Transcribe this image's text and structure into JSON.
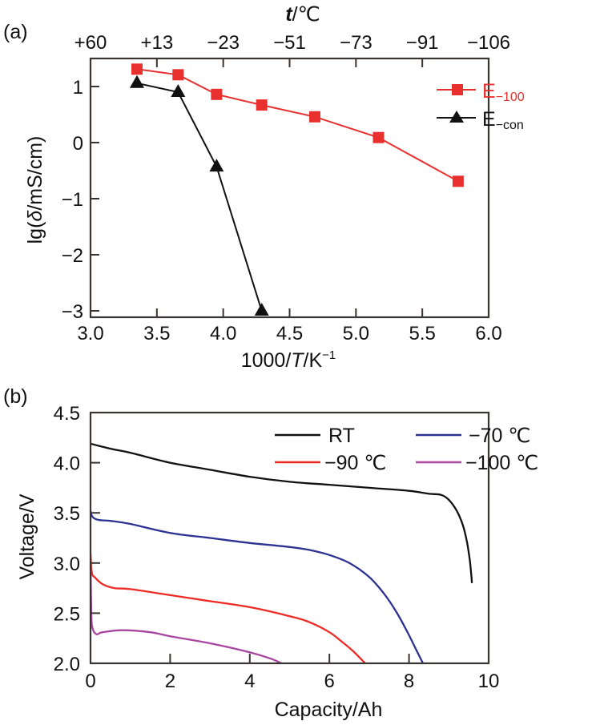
{
  "chart_data": [
    {
      "panel_label": "(a)",
      "type": "line",
      "title": "",
      "xlabel": "1000/T/K⁻¹",
      "xlabel_parts": [
        "1000/",
        "T",
        "/K",
        "−1"
      ],
      "ylabel": "lg(δ/mS/cm)",
      "ylabel_parts": [
        "lg(",
        "δ",
        "/mS/cm)"
      ],
      "top_xlabel": "t/℃",
      "top_xlabel_parts": [
        "t",
        "/℃"
      ],
      "xlim": [
        3.0,
        6.0
      ],
      "ylim": [
        -3.1,
        1.45
      ],
      "xticks": [
        3.0,
        3.5,
        4.0,
        4.5,
        5.0,
        5.5,
        6.0
      ],
      "xtick_labels": [
        "3.0",
        "3.5",
        "4.0",
        "4.5",
        "5.0",
        "5.5",
        "6.0"
      ],
      "yticks": [
        1,
        0,
        -1,
        -2,
        -3
      ],
      "ytick_labels": [
        "1",
        "0",
        "−1",
        "−2",
        "−3"
      ],
      "top_xticks": [
        3.0,
        3.5,
        4.0,
        4.5,
        5.0,
        5.5,
        6.0
      ],
      "top_xtick_labels": [
        "+60",
        "+13",
        "−23",
        "−51",
        "−73",
        "−91",
        "−106"
      ],
      "grid": false,
      "legend_position": "top-right",
      "series": [
        {
          "name": "E−100",
          "name_main": "E",
          "name_sub": "−100",
          "color": "#e8302f",
          "marker": "square",
          "x": [
            3.35,
            3.66,
            3.95,
            4.29,
            4.69,
            5.17,
            5.77
          ],
          "y": [
            1.31,
            1.21,
            0.86,
            0.67,
            0.46,
            0.09,
            -0.69
          ]
        },
        {
          "name": "E−con",
          "name_main": "E",
          "name_sub": "−con",
          "color": "#111111",
          "marker": "triangle",
          "x": [
            3.35,
            3.66,
            3.95,
            4.29
          ],
          "y": [
            1.06,
            0.9,
            -0.43,
            -3.0
          ]
        }
      ]
    },
    {
      "panel_label": "(b)",
      "type": "line",
      "title": "",
      "xlabel": "Capacity/Ah",
      "ylabel": "Voltage/V",
      "xlim": [
        0,
        10
      ],
      "ylim": [
        2.0,
        4.5
      ],
      "xticks": [
        0,
        2,
        4,
        6,
        8,
        10
      ],
      "xtick_labels": [
        "0",
        "2",
        "4",
        "6",
        "8",
        "10"
      ],
      "yticks": [
        4.5,
        4.0,
        3.5,
        3.0,
        2.5,
        2.0
      ],
      "ytick_labels": [
        "4.5",
        "4.0",
        "3.5",
        "3.0",
        "2.5",
        "2.0"
      ],
      "grid": false,
      "legend_position": "top-right",
      "series": [
        {
          "name": "RT",
          "color": "#111111",
          "x": [
            0,
            0.5,
            1,
            2,
            3,
            4,
            5,
            6,
            7,
            8,
            8.5,
            8.8,
            9.0,
            9.2,
            9.35,
            9.45,
            9.52,
            9.56,
            9.58
          ],
          "y": [
            4.19,
            4.14,
            4.1,
            4.0,
            3.93,
            3.86,
            3.81,
            3.78,
            3.75,
            3.72,
            3.69,
            3.68,
            3.63,
            3.52,
            3.38,
            3.22,
            3.05,
            2.9,
            2.8
          ]
        },
        {
          "name": "−70 ℃",
          "color": "#2d3192",
          "x": [
            0,
            0.05,
            0.2,
            0.5,
            1,
            2,
            3,
            4,
            5,
            5.5,
            6,
            6.5,
            7,
            7.4,
            7.7,
            8.0,
            8.2,
            8.35
          ],
          "y": [
            3.52,
            3.46,
            3.43,
            3.42,
            3.39,
            3.3,
            3.25,
            3.2,
            3.16,
            3.13,
            3.08,
            3.0,
            2.86,
            2.68,
            2.5,
            2.28,
            2.12,
            2.0
          ]
        },
        {
          "name": "−90 ℃",
          "color": "#ee2a24",
          "x": [
            0,
            0.02,
            0.05,
            0.1,
            0.3,
            0.6,
            1,
            2,
            3,
            4,
            5,
            5.5,
            6,
            6.3,
            6.6,
            6.9
          ],
          "y": [
            3.1,
            2.95,
            2.88,
            2.86,
            2.79,
            2.75,
            2.74,
            2.68,
            2.62,
            2.56,
            2.47,
            2.41,
            2.31,
            2.22,
            2.12,
            2.0
          ]
        },
        {
          "name": "−100 ℃",
          "color": "#a846a0",
          "x": [
            0,
            0.02,
            0.05,
            0.15,
            0.3,
            0.8,
            1.5,
            2,
            3,
            4,
            4.5,
            4.8
          ],
          "y": [
            3.0,
            2.5,
            2.35,
            2.29,
            2.31,
            2.33,
            2.31,
            2.27,
            2.2,
            2.11,
            2.05,
            2.0
          ]
        }
      ]
    }
  ]
}
